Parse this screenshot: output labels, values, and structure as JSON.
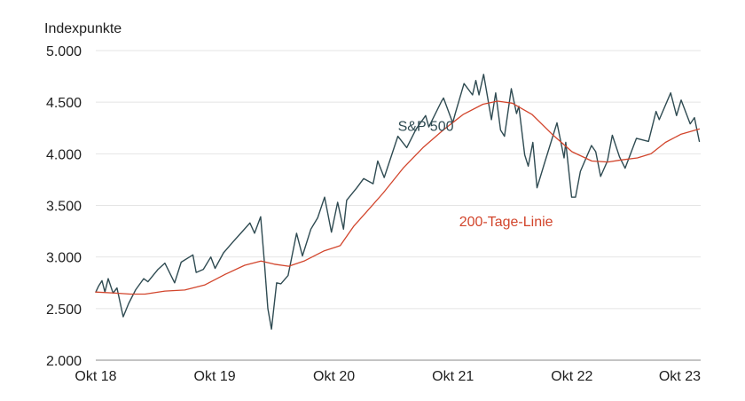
{
  "chart_data": {
    "type": "line",
    "ylabel": "Indexpunkte",
    "xlabel": "",
    "ylim": [
      2000,
      5000
    ],
    "y_ticks": [
      2000,
      2500,
      3000,
      3500,
      4000,
      4500,
      5000
    ],
    "y_tick_labels": [
      "2.000",
      "2.500",
      "3.000",
      "3.500",
      "4.000",
      "4.500",
      "5.000"
    ],
    "x_range": [
      "2018-10-01",
      "2023-10-31"
    ],
    "x_ticks": [
      "2018-10-01",
      "2019-10-01",
      "2020-10-01",
      "2021-10-01",
      "2022-10-01",
      "2023-10-01"
    ],
    "x_tick_labels": [
      "Okt 18",
      "Okt 19",
      "Okt 20",
      "Okt 21",
      "Okt 22",
      "Okt 23"
    ],
    "grid": true,
    "legend": "none",
    "colors": {
      "sp500": "#2f4b52",
      "ma200": "#d2452c",
      "grid": "#e4e4e4"
    },
    "series": [
      {
        "name": "S&P 500",
        "color": "#2f4b52",
        "points": [
          [
            "2018-10-01",
            2660
          ],
          [
            "2018-10-10",
            2720
          ],
          [
            "2018-10-20",
            2770
          ],
          [
            "2018-10-29",
            2660
          ],
          [
            "2018-11-08",
            2790
          ],
          [
            "2018-11-23",
            2650
          ],
          [
            "2018-12-05",
            2700
          ],
          [
            "2018-12-24",
            2420
          ],
          [
            "2019-01-10",
            2550
          ],
          [
            "2019-01-31",
            2680
          ],
          [
            "2019-02-25",
            2790
          ],
          [
            "2019-03-10",
            2760
          ],
          [
            "2019-04-10",
            2880
          ],
          [
            "2019-05-01",
            2940
          ],
          [
            "2019-05-31",
            2750
          ],
          [
            "2019-06-20",
            2950
          ],
          [
            "2019-07-26",
            3020
          ],
          [
            "2019-08-05",
            2850
          ],
          [
            "2019-08-27",
            2880
          ],
          [
            "2019-09-19",
            3000
          ],
          [
            "2019-10-02",
            2890
          ],
          [
            "2019-10-28",
            3040
          ],
          [
            "2019-11-27",
            3150
          ],
          [
            "2019-12-20",
            3230
          ],
          [
            "2020-01-17",
            3330
          ],
          [
            "2020-01-31",
            3230
          ],
          [
            "2020-02-19",
            3390
          ],
          [
            "2020-03-01",
            2960
          ],
          [
            "2020-03-12",
            2500
          ],
          [
            "2020-03-23",
            2300
          ],
          [
            "2020-04-08",
            2750
          ],
          [
            "2020-04-21",
            2740
          ],
          [
            "2020-05-13",
            2820
          ],
          [
            "2020-06-08",
            3230
          ],
          [
            "2020-06-26",
            3010
          ],
          [
            "2020-07-22",
            3270
          ],
          [
            "2020-08-12",
            3380
          ],
          [
            "2020-09-02",
            3580
          ],
          [
            "2020-09-23",
            3240
          ],
          [
            "2020-10-12",
            3530
          ],
          [
            "2020-10-30",
            3270
          ],
          [
            "2020-11-09",
            3550
          ],
          [
            "2020-12-10",
            3670
          ],
          [
            "2020-12-31",
            3760
          ],
          [
            "2021-01-29",
            3710
          ],
          [
            "2021-02-12",
            3930
          ],
          [
            "2021-03-04",
            3770
          ],
          [
            "2021-04-15",
            4170
          ],
          [
            "2021-05-12",
            4060
          ],
          [
            "2021-06-10",
            4240
          ],
          [
            "2021-07-09",
            4370
          ],
          [
            "2021-07-19",
            4260
          ],
          [
            "2021-08-27",
            4510
          ],
          [
            "2021-09-02",
            4540
          ],
          [
            "2021-09-30",
            4300
          ],
          [
            "2021-10-08",
            4390
          ],
          [
            "2021-11-04",
            4680
          ],
          [
            "2021-11-30",
            4570
          ],
          [
            "2021-12-10",
            4710
          ],
          [
            "2021-12-20",
            4570
          ],
          [
            "2022-01-03",
            4770
          ],
          [
            "2022-01-27",
            4330
          ],
          [
            "2022-02-09",
            4590
          ],
          [
            "2022-02-24",
            4230
          ],
          [
            "2022-03-08",
            4170
          ],
          [
            "2022-03-29",
            4630
          ],
          [
            "2022-04-14",
            4390
          ],
          [
            "2022-04-21",
            4460
          ],
          [
            "2022-05-09",
            3990
          ],
          [
            "2022-05-20",
            3880
          ],
          [
            "2022-06-03",
            4110
          ],
          [
            "2022-06-16",
            3670
          ],
          [
            "2022-07-08",
            3900
          ],
          [
            "2022-08-16",
            4300
          ],
          [
            "2022-09-07",
            3960
          ],
          [
            "2022-09-12",
            4110
          ],
          [
            "2022-09-30",
            3580
          ],
          [
            "2022-10-12",
            3580
          ],
          [
            "2022-10-27",
            3830
          ],
          [
            "2022-11-30",
            4080
          ],
          [
            "2022-12-13",
            4020
          ],
          [
            "2022-12-28",
            3780
          ],
          [
            "2023-01-18",
            3930
          ],
          [
            "2023-02-02",
            4180
          ],
          [
            "2023-02-24",
            3970
          ],
          [
            "2023-03-13",
            3860
          ],
          [
            "2023-04-17",
            4150
          ],
          [
            "2023-05-24",
            4120
          ],
          [
            "2023-06-16",
            4410
          ],
          [
            "2023-06-26",
            4330
          ],
          [
            "2023-07-31",
            4590
          ],
          [
            "2023-08-18",
            4370
          ],
          [
            "2023-09-01",
            4520
          ],
          [
            "2023-09-29",
            4290
          ],
          [
            "2023-10-12",
            4350
          ],
          [
            "2023-10-27",
            4120
          ]
        ]
      },
      {
        "name": "200-Tage-Linie",
        "color": "#d2452c",
        "points": [
          [
            "2018-10-01",
            2660
          ],
          [
            "2018-12-01",
            2650
          ],
          [
            "2019-01-15",
            2640
          ],
          [
            "2019-03-01",
            2640
          ],
          [
            "2019-05-01",
            2670
          ],
          [
            "2019-07-01",
            2680
          ],
          [
            "2019-09-01",
            2730
          ],
          [
            "2019-11-01",
            2830
          ],
          [
            "2020-01-01",
            2920
          ],
          [
            "2020-02-20",
            2960
          ],
          [
            "2020-04-01",
            2930
          ],
          [
            "2020-05-15",
            2910
          ],
          [
            "2020-07-01",
            2960
          ],
          [
            "2020-09-01",
            3060
          ],
          [
            "2020-10-20",
            3110
          ],
          [
            "2020-12-01",
            3300
          ],
          [
            "2021-01-15",
            3460
          ],
          [
            "2021-03-01",
            3620
          ],
          [
            "2021-05-01",
            3860
          ],
          [
            "2021-07-01",
            4060
          ],
          [
            "2021-09-01",
            4230
          ],
          [
            "2021-11-01",
            4380
          ],
          [
            "2022-01-01",
            4480
          ],
          [
            "2022-02-15",
            4510
          ],
          [
            "2022-04-01",
            4490
          ],
          [
            "2022-06-01",
            4380
          ],
          [
            "2022-08-01",
            4190
          ],
          [
            "2022-10-01",
            4020
          ],
          [
            "2022-12-01",
            3930
          ],
          [
            "2023-01-20",
            3920
          ],
          [
            "2023-03-01",
            3940
          ],
          [
            "2023-04-20",
            3960
          ],
          [
            "2023-06-01",
            4000
          ],
          [
            "2023-07-15",
            4110
          ],
          [
            "2023-09-01",
            4190
          ],
          [
            "2023-10-27",
            4240
          ]
        ]
      }
    ],
    "annotations": [
      {
        "text": "S&P 500",
        "series": "S&P 500",
        "x": "2021-04-15",
        "y": 4220
      },
      {
        "text": "200-Tage-Linie",
        "series": "200-Tage-Linie",
        "x": "2021-10-20",
        "y": 3300
      }
    ]
  }
}
